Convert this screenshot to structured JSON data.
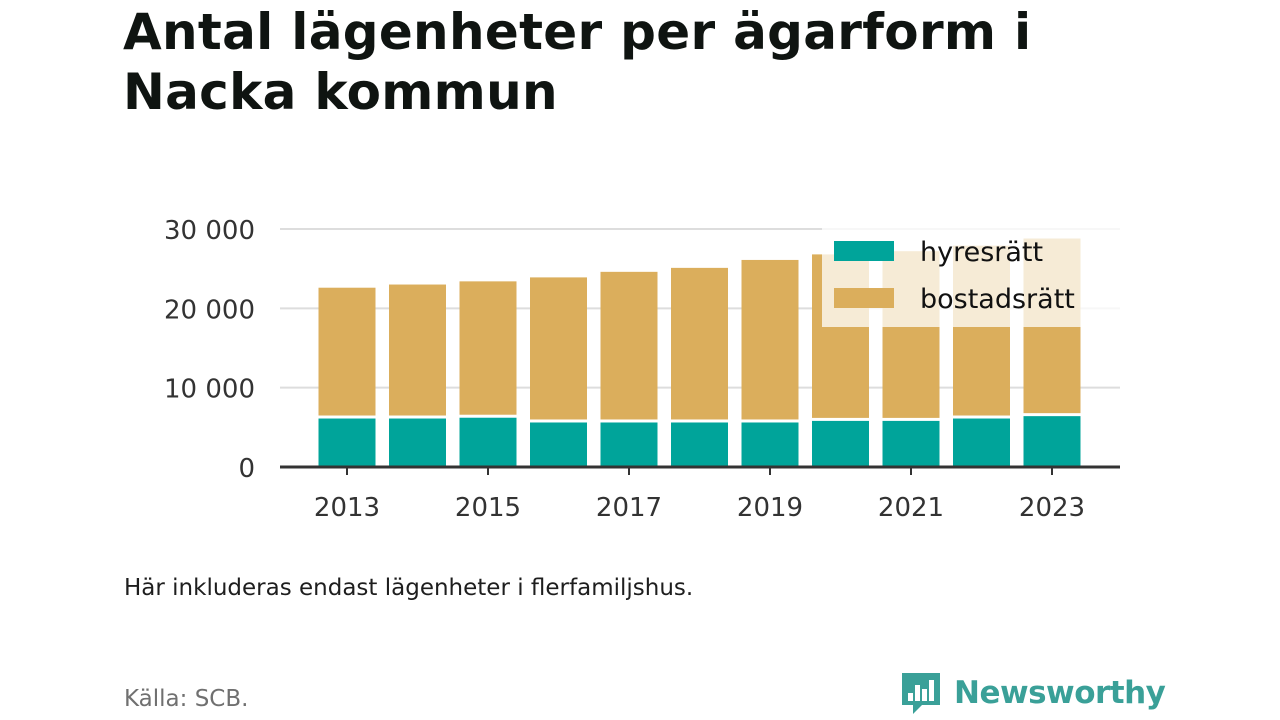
{
  "title": "Antal lägenheter per ägarform i Nacka kommun",
  "note": "Här inkluderas endast lägenheter i flerfamiljshus.",
  "source": "Källa: SCB.",
  "brand": {
    "name": "Newsworthy",
    "icon": "newsworthy-logo-icon",
    "color": "#3aa098"
  },
  "colors": {
    "hyresratt": "#00a49a",
    "bostadsratt": "#dbae5c",
    "grid": "#dddddd",
    "axis": "#333333"
  },
  "chart_data": {
    "type": "bar",
    "stacked": true,
    "title": "Antal lägenheter per ägarform i Nacka kommun",
    "xlabel": "",
    "ylabel": "",
    "categories": [
      "2013",
      "2014",
      "2015",
      "2016",
      "2017",
      "2018",
      "2019",
      "2020",
      "2021",
      "2022",
      "2023"
    ],
    "x_tick_labels": [
      "2013",
      "2015",
      "2017",
      "2019",
      "2021",
      "2023"
    ],
    "ylim": [
      0,
      30000
    ],
    "y_ticks": [
      0,
      10000,
      20000,
      30000
    ],
    "y_tick_labels": [
      "0",
      "10 000",
      "20 000",
      "30 000"
    ],
    "grid": true,
    "legend_position": "top-right",
    "series": [
      {
        "name": "hyresrätt",
        "color": "#00a49a",
        "values": [
          6300,
          6300,
          6400,
          5800,
          5800,
          5800,
          5800,
          6000,
          6000,
          6300,
          6600
        ]
      },
      {
        "name": "bostadsrätt",
        "color": "#dbae5c",
        "values": [
          16300,
          16700,
          17000,
          18100,
          18800,
          19300,
          20300,
          20800,
          21200,
          21600,
          22200
        ]
      }
    ]
  }
}
